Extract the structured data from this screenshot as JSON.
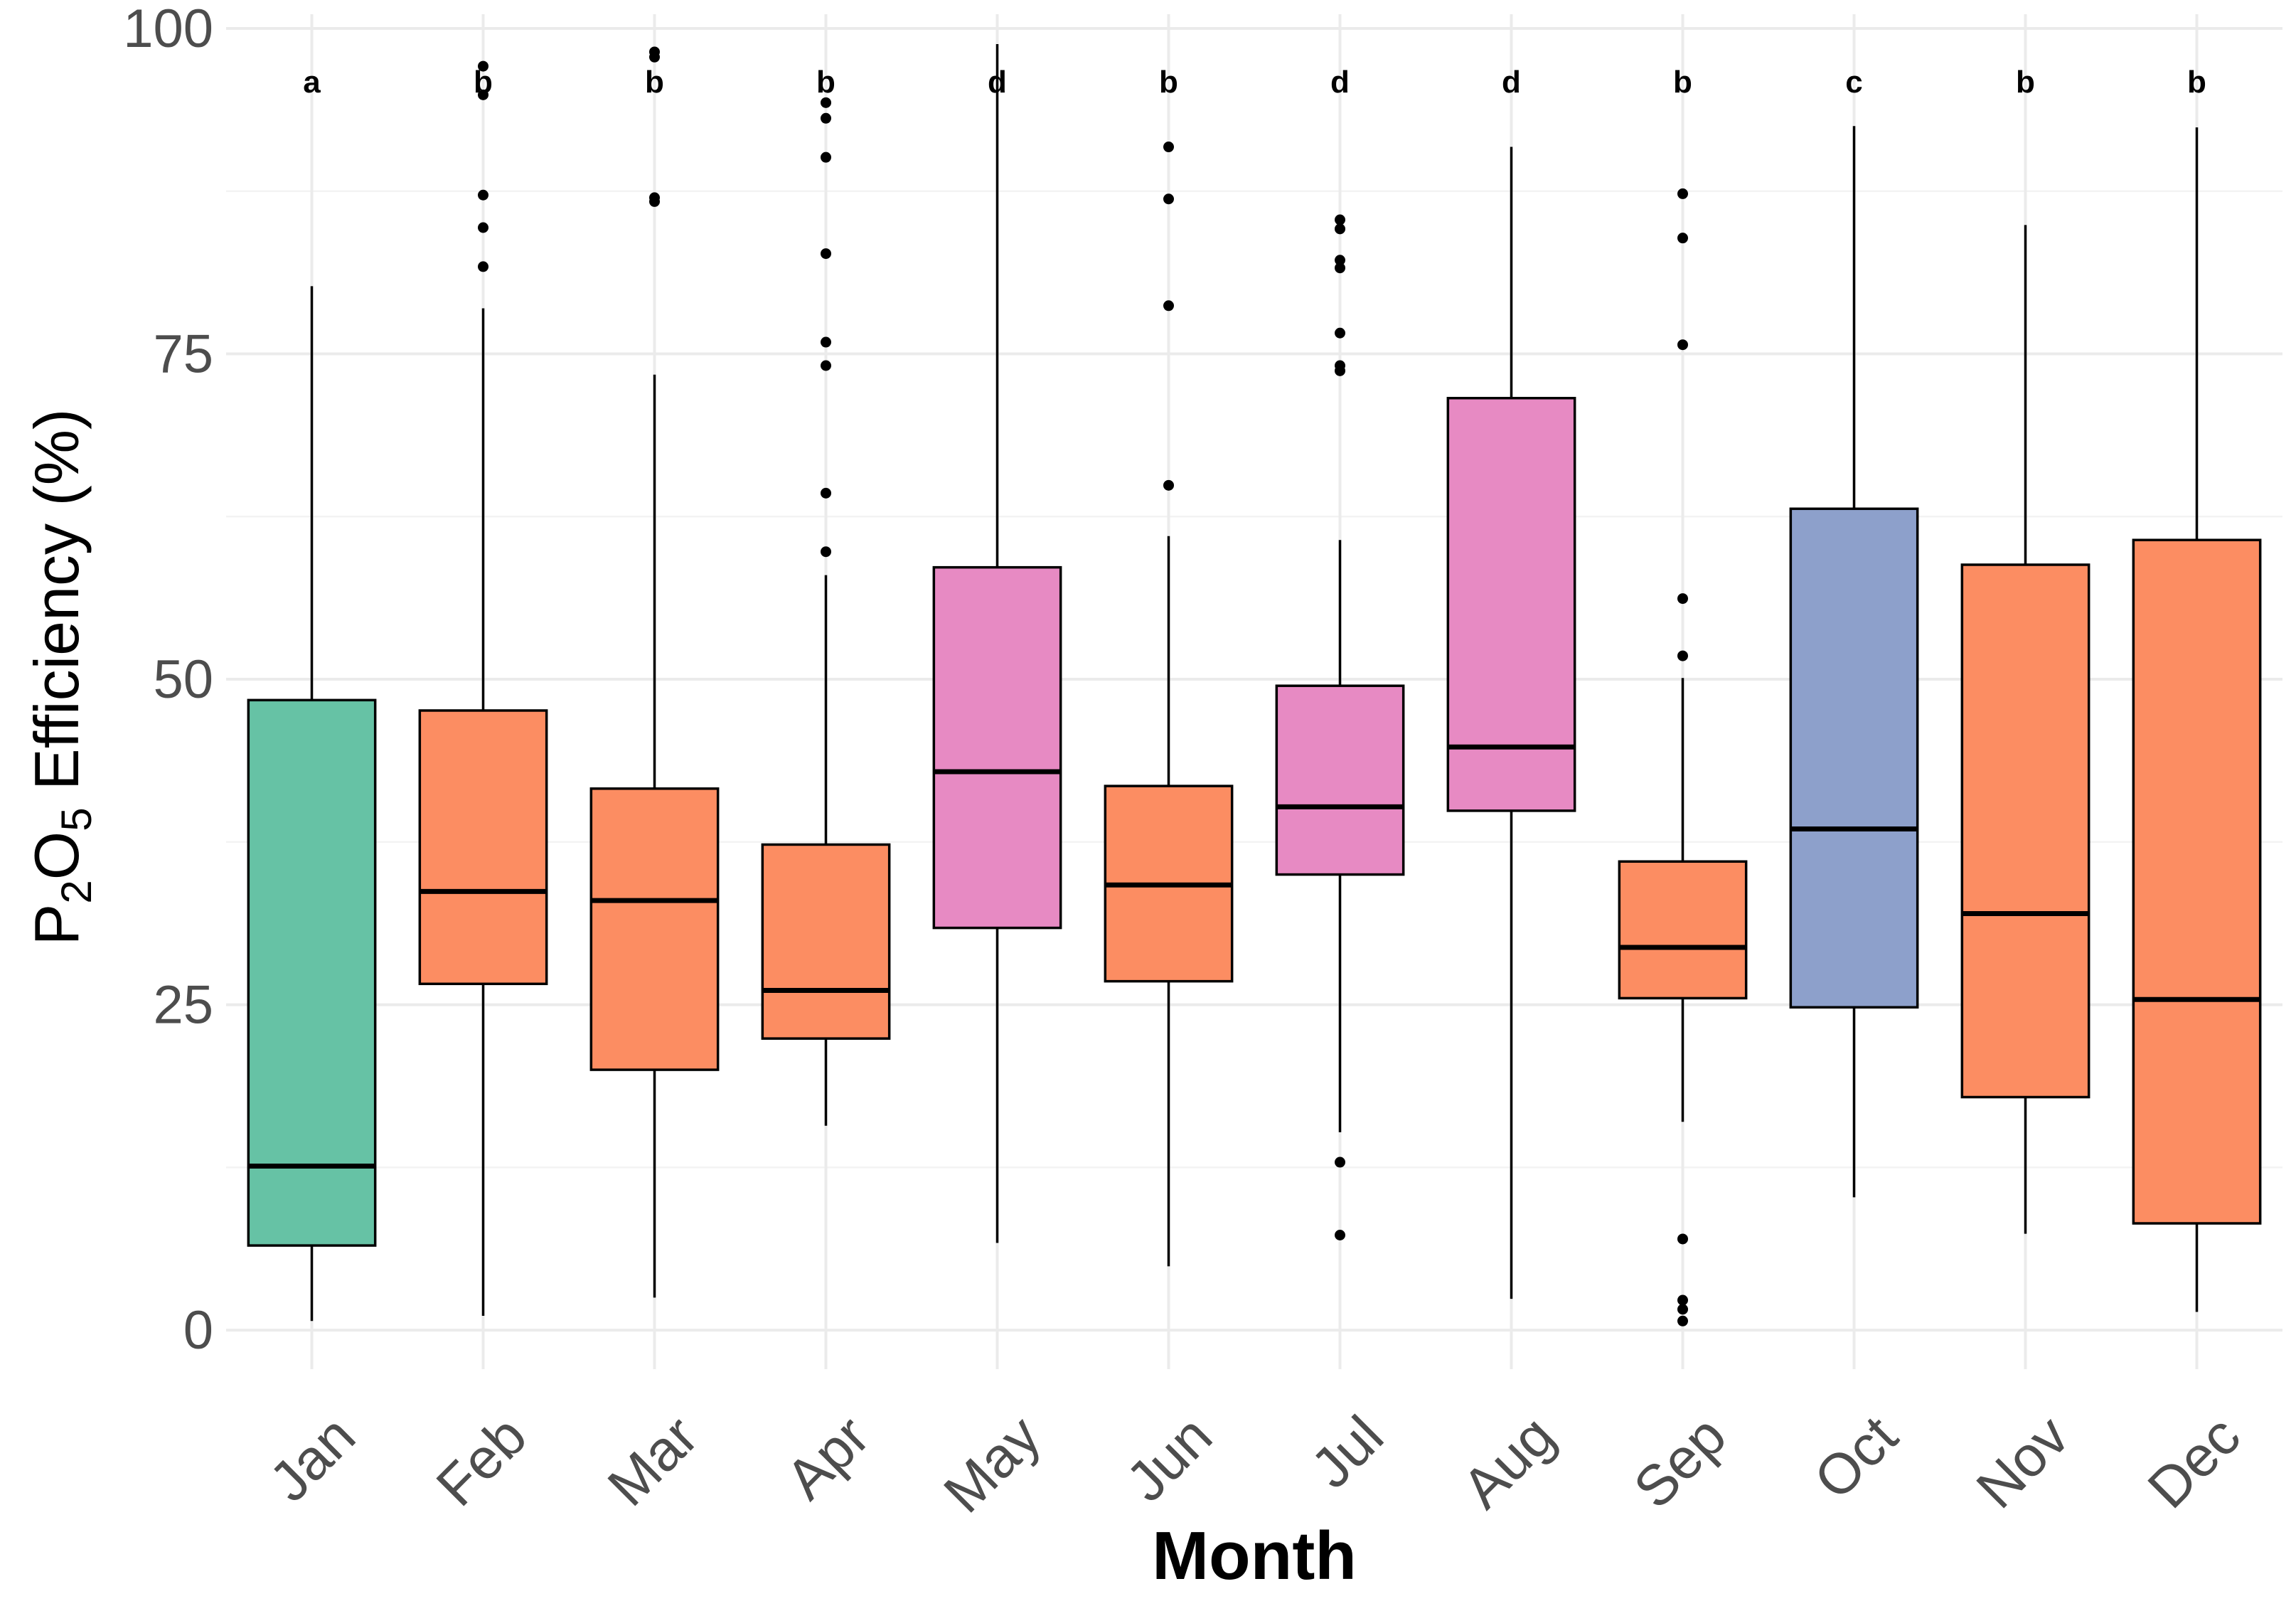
{
  "chart_data": {
    "type": "box",
    "xlabel": "Month",
    "ylabel": {
      "parts": [
        "P",
        "2",
        "O",
        "5",
        " Efficiency (%)"
      ]
    },
    "ylim": [
      -3,
      100
    ],
    "yticks": [
      0,
      25,
      50,
      75,
      100
    ],
    "grid": true,
    "legend": "none",
    "fill_colors": {
      "a": "#66c2a5",
      "b": "#fc8d62",
      "c": "#8da0cb",
      "d": "#e78ac3"
    },
    "categories": [
      "Jan",
      "Feb",
      "Mar",
      "Apr",
      "May",
      "Jun",
      "Jul",
      "Aug",
      "Sep",
      "Oct",
      "Nov",
      "Dec"
    ],
    "boxes": [
      {
        "month": "Jan",
        "group": "a",
        "whisker_low": 0.7,
        "q1": 6.5,
        "median": 12.6,
        "q3": 48.4,
        "whisker_high": 80.2,
        "outliers": []
      },
      {
        "month": "Feb",
        "group": "b",
        "whisker_low": 1.1,
        "q1": 26.6,
        "median": 33.7,
        "q3": 47.6,
        "whisker_high": 78.5,
        "outliers": [
          81.7,
          84.7,
          87.2,
          94.9,
          97.1
        ]
      },
      {
        "month": "Mar",
        "group": "b",
        "whisker_low": 2.5,
        "q1": 20.0,
        "median": 33.0,
        "q3": 41.6,
        "whisker_high": 73.4,
        "outliers": [
          86.7,
          87.0,
          97.8,
          98.2
        ]
      },
      {
        "month": "Apr",
        "group": "b",
        "whisker_low": 15.7,
        "q1": 22.4,
        "median": 26.1,
        "q3": 37.3,
        "whisker_high": 58.0,
        "outliers": [
          59.8,
          64.3,
          74.1,
          75.9,
          82.7,
          90.1,
          93.1,
          94.3
        ]
      },
      {
        "month": "May",
        "group": "d",
        "whisker_low": 6.7,
        "q1": 30.9,
        "median": 42.9,
        "q3": 58.6,
        "whisker_high": 98.8,
        "outliers": []
      },
      {
        "month": "Jun",
        "group": "b",
        "whisker_low": 4.9,
        "q1": 26.8,
        "median": 34.2,
        "q3": 41.8,
        "whisker_high": 61.0,
        "outliers": [
          64.9,
          78.7,
          86.9,
          90.9
        ]
      },
      {
        "month": "Jul",
        "group": "d",
        "whisker_low": 15.2,
        "q1": 35.0,
        "median": 40.2,
        "q3": 49.5,
        "whisker_high": 60.7,
        "outliers": [
          7.3,
          12.9,
          73.7,
          74.1,
          76.6,
          81.6,
          82.2,
          84.6,
          85.3
        ]
      },
      {
        "month": "Aug",
        "group": "d",
        "whisker_low": 2.4,
        "q1": 39.9,
        "median": 44.8,
        "q3": 71.6,
        "whisker_high": 90.9,
        "outliers": []
      },
      {
        "month": "Sep",
        "group": "b",
        "whisker_low": 16.0,
        "q1": 25.5,
        "median": 29.4,
        "q3": 36.0,
        "whisker_high": 50.1,
        "outliers": [
          0.7,
          1.6,
          2.3,
          7.0,
          51.8,
          56.2,
          75.7,
          83.9,
          87.3
        ]
      },
      {
        "month": "Oct",
        "group": "c",
        "whisker_low": 10.2,
        "q1": 24.8,
        "median": 38.5,
        "q3": 63.1,
        "whisker_high": 92.5,
        "outliers": []
      },
      {
        "month": "Nov",
        "group": "b",
        "whisker_low": 7.4,
        "q1": 17.9,
        "median": 32.0,
        "q3": 58.8,
        "whisker_high": 84.9,
        "outliers": []
      },
      {
        "month": "Dec",
        "group": "b",
        "whisker_low": 1.4,
        "q1": 8.2,
        "median": 25.4,
        "q3": 60.7,
        "whisker_high": 92.4,
        "outliers": []
      }
    ]
  }
}
